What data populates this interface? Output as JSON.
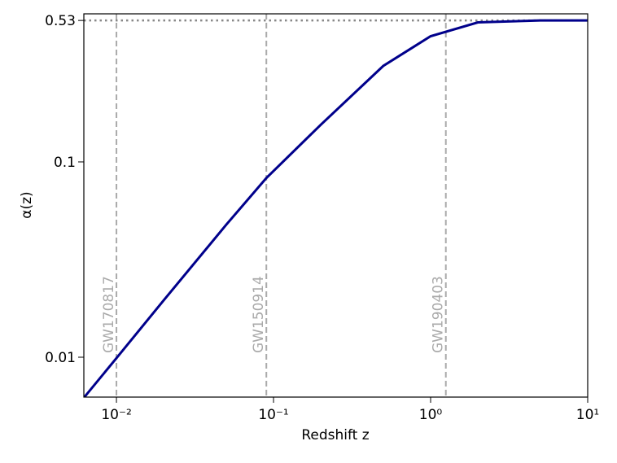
{
  "chart_data": {
    "type": "line",
    "xlabel": "Redshift z",
    "ylabel": "α(z)",
    "x": [
      0.0062,
      0.01,
      0.02,
      0.05,
      0.09,
      0.2,
      0.5,
      1,
      2,
      5,
      10
    ],
    "values": [
      0.0062,
      0.0099,
      0.0196,
      0.0477,
      0.0827,
      0.155,
      0.31,
      0.44,
      0.518,
      0.53,
      0.53
    ],
    "color": "#00008b",
    "asymptote": 0.53,
    "asymptote_color": "#888888",
    "events": [
      {
        "label": "GW170817",
        "z": 0.01
      },
      {
        "label": "GW150914",
        "z": 0.09
      },
      {
        "label": "GW190403",
        "z": 1.25
      }
    ],
    "event_color": "#aaaaaa",
    "xscale": "log",
    "yscale": "log",
    "xlim": [
      0.0062,
      10
    ],
    "ylim": [
      0.00625,
      0.573
    ],
    "xticks": [
      {
        "value": 0.01,
        "label": "10⁻²"
      },
      {
        "value": 0.1,
        "label": "10⁻¹"
      },
      {
        "value": 1,
        "label": "10⁰"
      },
      {
        "value": 10,
        "label": "10¹"
      }
    ],
    "yticks": [
      0.01,
      0.1,
      0.53
    ]
  }
}
